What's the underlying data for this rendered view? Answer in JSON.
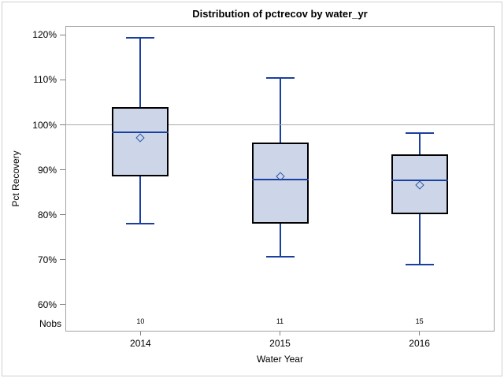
{
  "figure": {
    "title": "Distribution of pctrecov by water_yr"
  },
  "chart_data": {
    "type": "boxplot",
    "title": "Distribution of pctrecov by water_yr",
    "xlabel": "Water Year",
    "ylabel": "Pct Recovery",
    "ylim": [
      54,
      122
    ],
    "yticks": [
      60,
      70,
      80,
      90,
      100,
      110,
      120
    ],
    "ytick_suffix": "%",
    "grid": false,
    "refline": 100,
    "legend": "none",
    "nobs_label": "Nobs",
    "categories": [
      "2014",
      "2015",
      "2016"
    ],
    "series": [
      {
        "category": "2014",
        "nobs": "10",
        "min": 78.0,
        "q1": 88.6,
        "median": 98.4,
        "mean": 97.1,
        "q3": 104.0,
        "max": 119.3
      },
      {
        "category": "2015",
        "nobs": "11",
        "min": 70.7,
        "q1": 78.0,
        "median": 87.9,
        "mean": 88.6,
        "q3": 96.0,
        "max": 110.4
      },
      {
        "category": "2016",
        "nobs": "15",
        "min": 68.9,
        "q1": 80.1,
        "median": 87.7,
        "mean": 86.6,
        "q3": 93.5,
        "max": 98.1
      }
    ],
    "colors": {
      "box_fill": "#ccd6e8",
      "box_border": "#000000",
      "whisker": "#1b3f9f",
      "median": "#1b3f9f",
      "mean_marker": "#2e55a5",
      "refline": "#aaaaaa",
      "axis": "#a3a3a3",
      "tick": "#808080",
      "figure_border": "#cfcfcf",
      "text": "#000000"
    }
  }
}
